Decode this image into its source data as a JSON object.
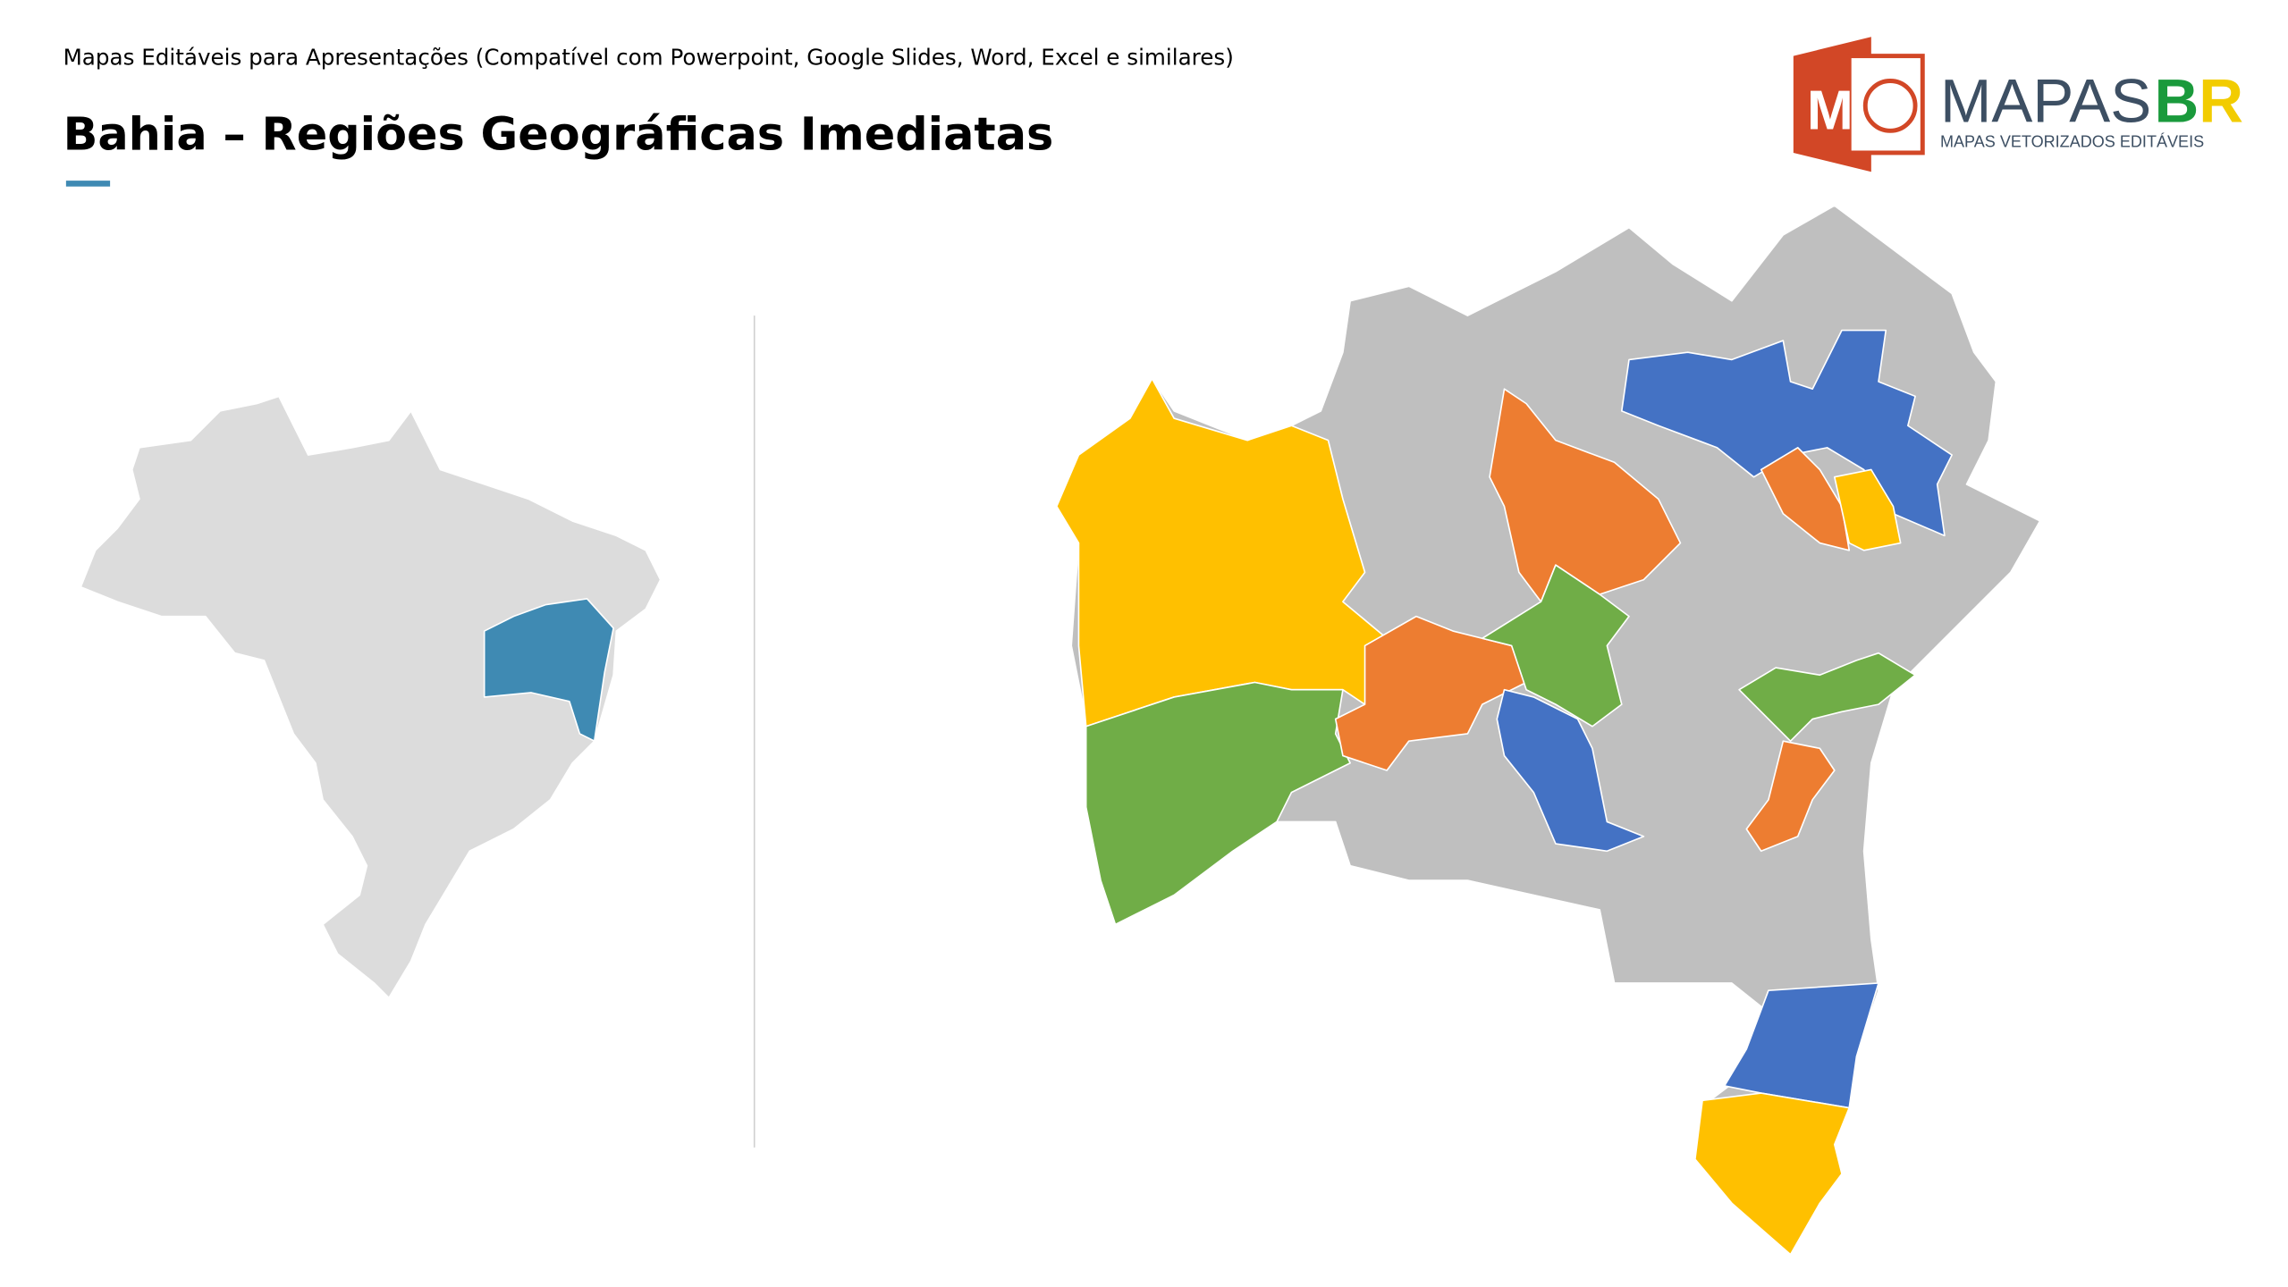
{
  "header": {
    "subtitle": "Mapas Editáveis para Apresentações (Compatível com Powerpoint, Google Slides, Word, Excel e similares)",
    "title": "Bahia – Regiões Geográficas Imediatas"
  },
  "logo": {
    "icon_letter": "M",
    "brand_main": "MAPAS",
    "brand_accent": "BR",
    "tagline": "MAPAS VETORIZADOS EDITÁVEIS"
  }
}
